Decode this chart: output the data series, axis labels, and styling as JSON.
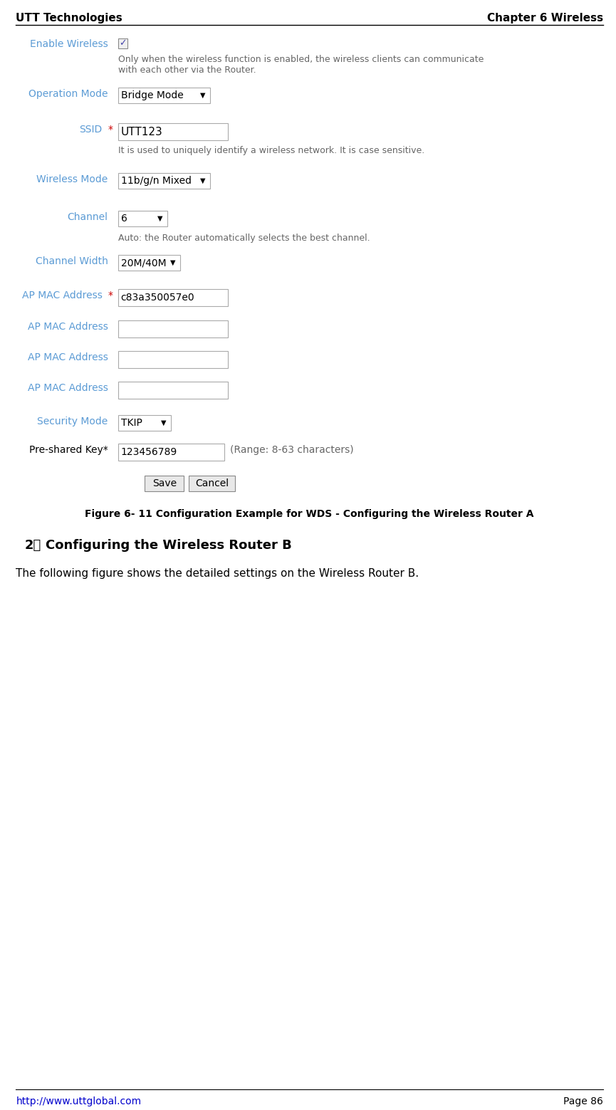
{
  "header_left": "UTT Technologies",
  "header_right": "Chapter 6 Wireless",
  "footer_left": "http://www.uttglobal.com",
  "footer_right": "Page 86",
  "enable_wireless_label": "Enable Wireless",
  "enable_wireless_desc": "Only when the wireless function is enabled, the wireless clients can communicate\nwith each other via the Router.",
  "operation_mode_label": "Operation Mode",
  "operation_mode_value": "Bridge Mode",
  "ssid_label": "SSID",
  "ssid_value": "UTT123",
  "ssid_desc": "It is used to uniquely identify a wireless network. It is case sensitive.",
  "wireless_mode_label": "Wireless Mode",
  "wireless_mode_value": "11b/g/n Mixed",
  "channel_label": "Channel",
  "channel_value": "6",
  "channel_desc": "Auto: the Router automatically selects the best channel.",
  "channel_width_label": "Channel Width",
  "channel_width_value": "20M/40M",
  "ap_mac1_label": "AP MAC Address",
  "ap_mac1_value": "c83a350057e0",
  "ap_mac2_label": "AP MAC Address",
  "ap_mac3_label": "AP MAC Address",
  "ap_mac4_label": "AP MAC Address",
  "security_label": "Security Mode",
  "security_value": "TKIP",
  "psk_label": "Pre-shared Key*",
  "psk_value": "123456789",
  "psk_range": "(Range: 8-63 characters)",
  "save_btn": "Save",
  "cancel_btn": "Cancel",
  "figure_caption": "Figure 6- 11 Configuration Example for WDS - Configuring the Wireless Router A",
  "section_num": "2）",
  "section_title": "Configuring the Wireless Router B",
  "section_body": "The following figure shows the detailed settings on the Wireless Router B.",
  "bg_color": "#ffffff",
  "label_color": "#5b9bd5",
  "text_color": "#000000",
  "desc_color": "#666666",
  "border_color": "#aaaaaa",
  "red_color": "#cc0000",
  "link_color": "#0000cc",
  "header_line_color": "#000000",
  "footer_line_color": "#000000"
}
